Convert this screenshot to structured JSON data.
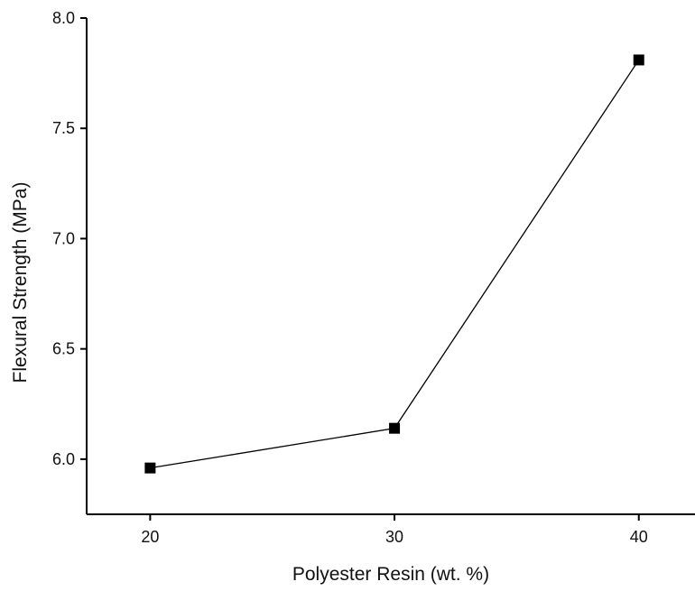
{
  "chart_data": {
    "type": "line",
    "title": "",
    "xlabel": "Polyester Resin (wt. %)",
    "ylabel": "Flexural Strength (MPa)",
    "x": [
      20,
      30,
      40
    ],
    "series": [
      {
        "name": "",
        "values": [
          5.96,
          6.14,
          7.81
        ],
        "marker": "square",
        "color": "#000000"
      }
    ],
    "xticks": [
      20,
      30,
      40
    ],
    "xtick_labels": [
      "20",
      "30",
      "40"
    ],
    "yticks": [
      6.0,
      6.5,
      7.0,
      7.5,
      8.0
    ],
    "ytick_labels": [
      "6.0",
      "6.5",
      "7.0",
      "7.5",
      "8.0"
    ],
    "xlim": [
      17.4,
      42.3
    ],
    "ylim": [
      5.75,
      8.0
    ],
    "grid": false,
    "legend": "none"
  }
}
